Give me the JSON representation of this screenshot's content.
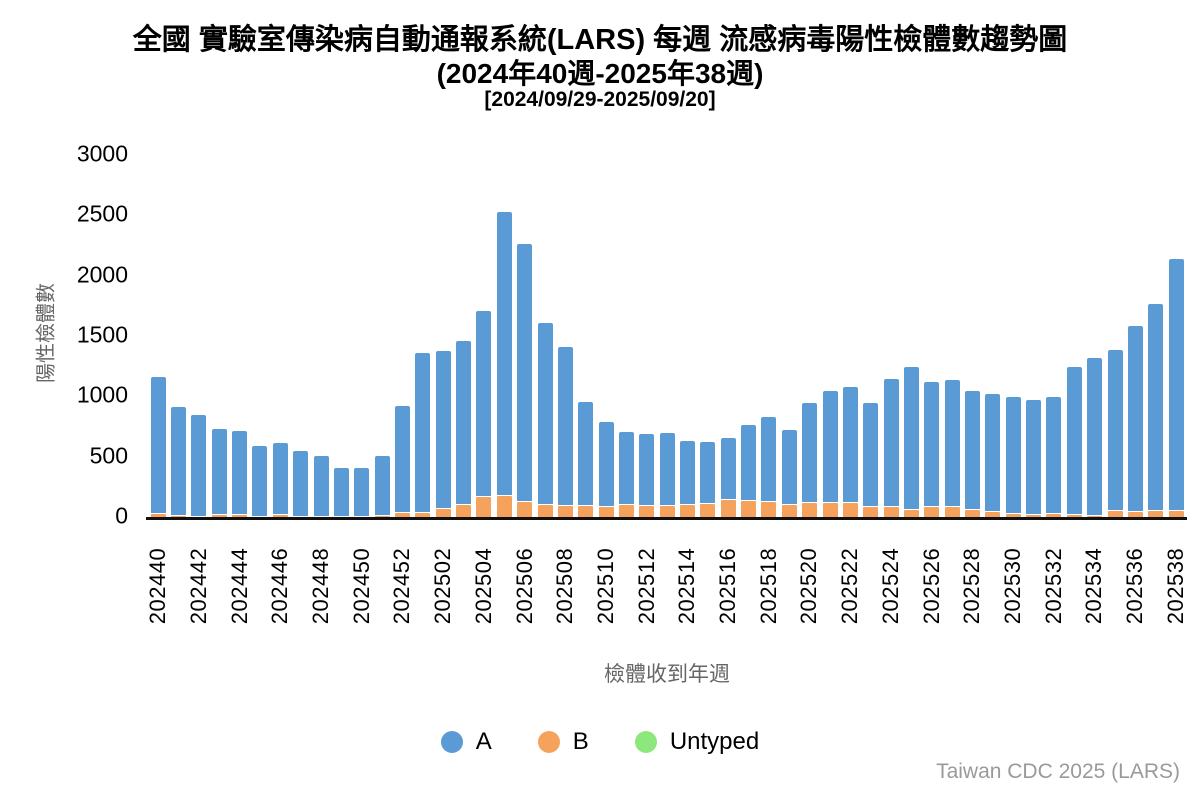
{
  "title": {
    "line1": "全國 實驗室傳染病自動通報系統(LARS) 每週 流感病毒陽性檢體數趨勢圖",
    "line2": "(2024年40週-2025年38週)",
    "line3": "[2024/09/29-2025/09/20]"
  },
  "y_axis": {
    "label": "陽性檢體數",
    "ticks": [
      0,
      500,
      1000,
      1500,
      2000,
      2500,
      3000
    ]
  },
  "x_axis": {
    "label": "檢體收到年週",
    "tick_every": 2
  },
  "attribution": "Taiwan CDC 2025 (LARS)",
  "colors": {
    "A": "#5b9bd5",
    "B": "#f5a35c",
    "Untyped": "#8ce87d"
  },
  "chart_data": {
    "type": "bar",
    "stacked": true,
    "title": "全國 實驗室傳染病自動通報系統(LARS) 每週 流感病毒陽性檢體數趨勢圖 (2024年40週-2025年38週) [2024/09/29-2025/09/20]",
    "xlabel": "檢體收到年週",
    "ylabel": "陽性檢體數",
    "ylim": [
      0,
      3000
    ],
    "grid": false,
    "legend_position": "bottom",
    "stack_order_bottom_to_top": [
      "B",
      "A",
      "Untyped"
    ],
    "categories": [
      "202440",
      "202441",
      "202442",
      "202443",
      "202444",
      "202445",
      "202446",
      "202447",
      "202448",
      "202449",
      "202450",
      "202451",
      "202452",
      "202501",
      "202502",
      "202503",
      "202504",
      "202505",
      "202506",
      "202507",
      "202508",
      "202509",
      "202510",
      "202511",
      "202512",
      "202513",
      "202514",
      "202515",
      "202516",
      "202517",
      "202518",
      "202519",
      "202520",
      "202521",
      "202522",
      "202523",
      "202524",
      "202525",
      "202526",
      "202527",
      "202528",
      "202529",
      "202530",
      "202531",
      "202532",
      "202533",
      "202534",
      "202535",
      "202536",
      "202537",
      "202538"
    ],
    "series": [
      {
        "name": "A",
        "color": "#5b9bd5",
        "values": [
          1135,
          905,
          838,
          718,
          695,
          590,
          598,
          543,
          502,
          410,
          407,
          490,
          892,
          1325,
          1310,
          1360,
          1540,
          2350,
          2140,
          1510,
          1320,
          860,
          703,
          604,
          600,
          605,
          530,
          515,
          515,
          630,
          708,
          625,
          822,
          922,
          961,
          863,
          1061,
          1191,
          1035,
          1050,
          980,
          975,
          972,
          950,
          970,
          1230,
          1310,
          1335,
          1540,
          1720,
          2095
        ]
      },
      {
        "name": "B",
        "color": "#f5a35c",
        "values": [
          30,
          15,
          12,
          22,
          25,
          10,
          27,
          12,
          8,
          5,
          8,
          20,
          38,
          45,
          75,
          110,
          175,
          185,
          130,
          110,
          100,
          100,
          92,
          106,
          100,
          100,
          105,
          115,
          150,
          140,
          130,
          105,
          128,
          128,
          124,
          92,
          94,
          64,
          95,
          90,
          70,
          50,
          33,
          25,
          35,
          25,
          20,
          55,
          50,
          55,
          55
        ]
      },
      {
        "name": "Untyped",
        "color": "#8ce87d",
        "values": [
          0,
          0,
          0,
          0,
          0,
          0,
          0,
          0,
          0,
          0,
          0,
          0,
          0,
          0,
          0,
          0,
          0,
          0,
          0,
          0,
          0,
          0,
          0,
          0,
          0,
          0,
          0,
          0,
          0,
          0,
          0,
          0,
          0,
          0,
          0,
          0,
          0,
          0,
          0,
          0,
          0,
          0,
          0,
          0,
          0,
          0,
          0,
          0,
          0,
          0,
          0
        ]
      }
    ]
  },
  "legend": [
    {
      "name": "A"
    },
    {
      "name": "B"
    },
    {
      "name": "Untyped"
    }
  ]
}
